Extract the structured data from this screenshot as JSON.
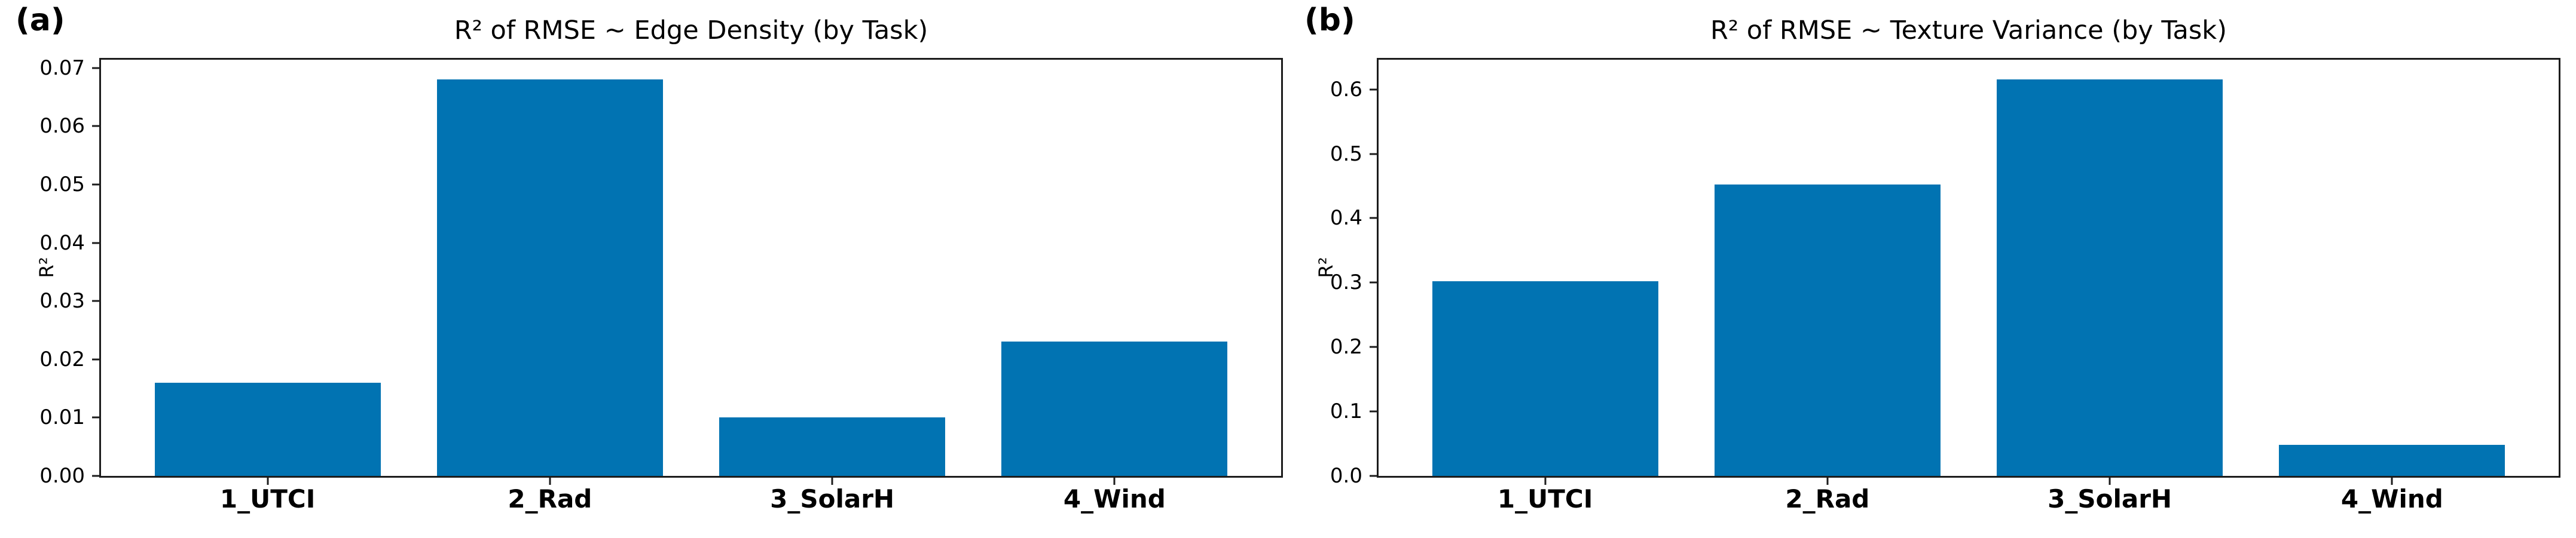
{
  "figure": {
    "background": "#ffffff",
    "bar_color": "#0173b2",
    "spine_color": "#1c1c1c",
    "panels": [
      {
        "label": "(a)"
      },
      {
        "label": "(b)"
      }
    ]
  },
  "chart_data": [
    {
      "type": "bar",
      "title": "R² of RMSE ~ Edge Density (by Task)",
      "categories": [
        "1_UTCI",
        "2_Rad",
        "3_SolarH",
        "4_Wind"
      ],
      "values": [
        0.016,
        0.068,
        0.01,
        0.023
      ],
      "xlabel": "",
      "ylabel": "R²",
      "ylim": [
        0,
        0.0714
      ],
      "yticks": [
        0.0,
        0.01,
        0.02,
        0.03,
        0.04,
        0.05,
        0.06,
        0.07
      ],
      "ytick_labels": [
        "0.00",
        "0.01",
        "0.02",
        "0.03",
        "0.04",
        "0.05",
        "0.06",
        "0.07"
      ],
      "bar_width_fraction": 0.8,
      "grid": false,
      "legend": "none"
    },
    {
      "type": "bar",
      "title": "R² of RMSE ~ Texture Variance (by Task)",
      "categories": [
        "1_UTCI",
        "2_Rad",
        "3_SolarH",
        "4_Wind"
      ],
      "values": [
        0.302,
        0.452,
        0.615,
        0.048
      ],
      "xlabel": "",
      "ylabel": "R²",
      "ylim": [
        0,
        0.646
      ],
      "yticks": [
        0.0,
        0.1,
        0.2,
        0.3,
        0.4,
        0.5,
        0.6
      ],
      "ytick_labels": [
        "0.0",
        "0.1",
        "0.2",
        "0.3",
        "0.4",
        "0.5",
        "0.6"
      ],
      "bar_width_fraction": 0.8,
      "grid": false,
      "legend": "none"
    }
  ]
}
